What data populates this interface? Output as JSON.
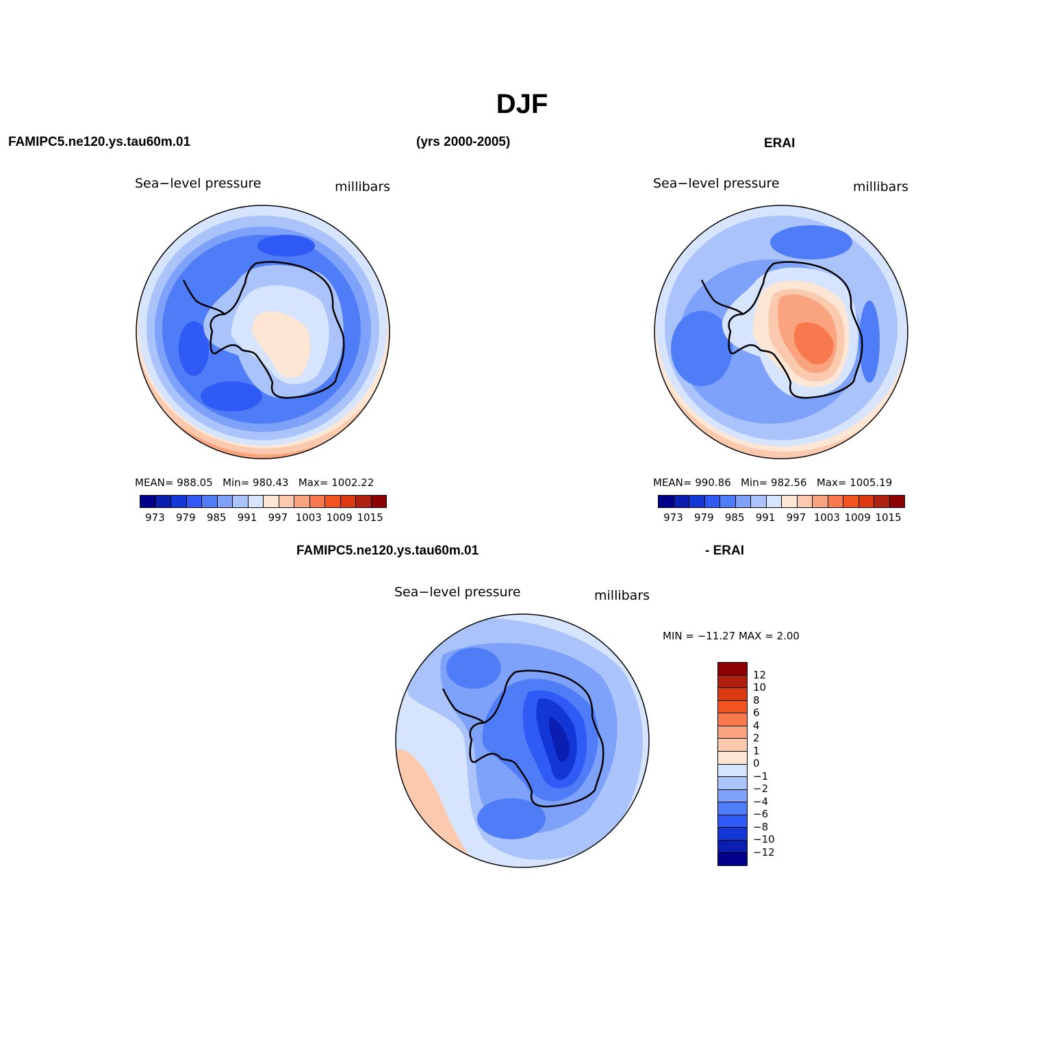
{
  "figure": {
    "title": "DJF",
    "model_name": "FAMIPC5.ne120.ys.tau60m.01",
    "years": "(yrs 2000-2005)",
    "obs_name": "ERAI",
    "diff_left": "FAMIPC5.ne120.ys.tau60m.01",
    "diff_right": "- ERAI"
  },
  "panels": {
    "model": {
      "variable": "Sea−level pressure",
      "units": "millibars",
      "mean_label": "MEAN=",
      "mean": "988.05",
      "min_label": "Min=",
      "min": "980.43",
      "max_label": "Max=",
      "max": "1002.22"
    },
    "obs": {
      "variable": "Sea−level pressure",
      "units": "millibars",
      "mean_label": "MEAN=",
      "mean": "990.86",
      "min_label": "Min=",
      "min": "982.56",
      "max_label": "Max=",
      "max": "1005.19"
    },
    "diff": {
      "variable": "Sea−level pressure",
      "units": "millibars",
      "minmax": "MIN = −11.27 MAX =    2.00"
    }
  },
  "colorbar_abs": {
    "colors": [
      "#00008b",
      "#0a1fb0",
      "#1237d6",
      "#2f5af5",
      "#4f7df7",
      "#7ea1f9",
      "#aac4fb",
      "#d6e5fd",
      "#fde6d3",
      "#fbc9ad",
      "#f9a47e",
      "#f8794e",
      "#f2531f",
      "#db3a10",
      "#b02010",
      "#8b0000"
    ],
    "ticks": [
      "973",
      "979",
      "985",
      "991",
      "997",
      "1003",
      "1009",
      "1015"
    ]
  },
  "colorbar_diff": {
    "colors": [
      "#8b0000",
      "#b02010",
      "#db3a10",
      "#f2531f",
      "#f8794e",
      "#f9a47e",
      "#fbc9ad",
      "#fde6d3",
      "#d6e5fd",
      "#aac4fb",
      "#7ea1f9",
      "#4f7df7",
      "#2f5af5",
      "#1237d6",
      "#0a1fb0",
      "#00008b"
    ],
    "ticks": [
      "12",
      "10",
      "8",
      "6",
      "4",
      "2",
      "1",
      "0",
      "−1",
      "−2",
      "−4",
      "−6",
      "−8",
      "−10",
      "−12"
    ]
  }
}
